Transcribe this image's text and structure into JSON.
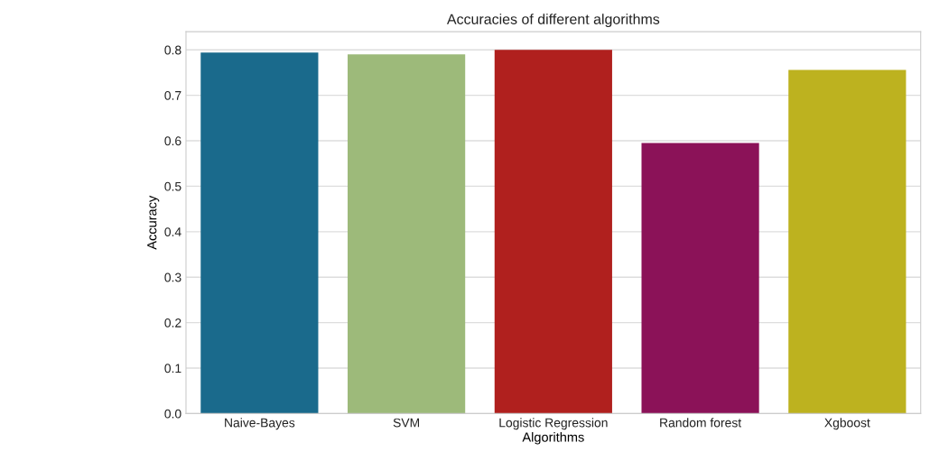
{
  "chart_data": {
    "type": "bar",
    "title": "Accuracies of different algorithms",
    "xlabel": "Algorithms",
    "ylabel": "Accuracy",
    "categories": [
      "Naive-Bayes",
      "SVM",
      "Logistic Regression",
      "Random forest",
      "Xgboost"
    ],
    "values": [
      0.794,
      0.79,
      0.8,
      0.595,
      0.756
    ],
    "colors": [
      "#1a6a8c",
      "#9dba7a",
      "#b0201e",
      "#8b1258",
      "#bdb21f"
    ],
    "ylim": [
      0,
      0.84
    ],
    "yticks": [
      {
        "value": 0,
        "label": "0.0"
      },
      0.1,
      0.2,
      0.3,
      0.4,
      0.5,
      0.6,
      0.7,
      0.8
    ],
    "grid": "y"
  }
}
